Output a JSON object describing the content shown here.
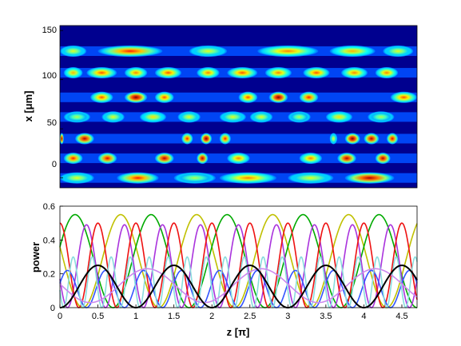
{
  "chart_data": [
    {
      "type": "heatmap",
      "ylabel": "x [μm]",
      "xlabel": "",
      "y_ticks": [
        "0",
        "50",
        "100",
        "150"
      ],
      "x_range_pi": [
        0,
        4.7
      ],
      "y_range_um": [
        -10,
        155
      ],
      "colormap": "jet",
      "waveguide_rows": [
        {
          "x_um": 0,
          "segments": [
            [
              0.0,
              0.45,
              0.6
            ],
            [
              0.75,
              1.3,
              0.85
            ],
            [
              1.5,
              2.05,
              0.55
            ],
            [
              2.1,
              2.85,
              0.75
            ],
            [
              3.0,
              3.6,
              0.6
            ],
            [
              3.75,
              4.4,
              0.95
            ]
          ]
        },
        {
          "x_um": 20,
          "segments": [
            [
              0.05,
              0.3,
              0.85
            ],
            [
              0.5,
              0.75,
              0.9
            ],
            [
              1.25,
              1.5,
              0.95
            ],
            [
              1.8,
              1.95,
              0.95
            ],
            [
              2.2,
              2.5,
              0.75
            ],
            [
              3.15,
              3.45,
              0.75
            ],
            [
              3.65,
              3.9,
              0.95
            ],
            [
              4.15,
              4.35,
              0.95
            ]
          ]
        },
        {
          "x_um": 40,
          "segments": [
            [
              -0.05,
              0.05,
              1.0
            ],
            [
              0.2,
              0.45,
              0.95
            ],
            [
              1.6,
              1.75,
              0.85
            ],
            [
              1.85,
              2.0,
              1.0
            ],
            [
              2.1,
              2.25,
              0.85
            ],
            [
              3.55,
              3.65,
              0.6
            ],
            [
              3.75,
              3.95,
              1.0
            ],
            [
              4.0,
              4.2,
              0.95
            ],
            [
              4.3,
              4.45,
              0.9
            ]
          ]
        },
        {
          "x_um": 62,
          "segments": [
            [
              0.05,
              0.4,
              0.55
            ],
            [
              0.55,
              0.85,
              0.6
            ],
            [
              1.05,
              1.4,
              0.65
            ],
            [
              1.55,
              1.85,
              0.6
            ],
            [
              2.1,
              2.45,
              0.6
            ],
            [
              2.5,
              2.8,
              0.6
            ],
            [
              3.0,
              3.3,
              0.55
            ],
            [
              3.5,
              3.85,
              0.65
            ],
            [
              4.05,
              4.4,
              0.55
            ]
          ]
        },
        {
          "x_um": 82,
          "segments": [
            [
              0.4,
              0.7,
              0.8
            ],
            [
              0.85,
              1.15,
              1.0
            ],
            [
              1.25,
              1.5,
              0.8
            ],
            [
              2.35,
              2.6,
              0.8
            ],
            [
              2.75,
              3.0,
              1.0
            ],
            [
              3.15,
              3.4,
              0.85
            ],
            [
              4.35,
              4.7,
              0.8
            ]
          ]
        },
        {
          "x_um": 107,
          "segments": [
            [
              0.05,
              0.3,
              0.7
            ],
            [
              0.35,
              0.75,
              0.8
            ],
            [
              0.85,
              1.15,
              0.75
            ],
            [
              1.25,
              1.6,
              0.8
            ],
            [
              1.8,
              2.1,
              0.75
            ],
            [
              2.2,
              2.6,
              0.8
            ],
            [
              2.7,
              3.05,
              0.75
            ],
            [
              3.2,
              3.55,
              0.8
            ],
            [
              3.7,
              4.05,
              0.75
            ],
            [
              4.15,
              4.45,
              0.75
            ]
          ]
        },
        {
          "x_um": 129,
          "segments": [
            [
              0.0,
              0.35,
              0.6
            ],
            [
              0.5,
              1.35,
              0.85
            ],
            [
              1.7,
              2.2,
              0.6
            ],
            [
              2.6,
              3.4,
              0.75
            ],
            [
              3.55,
              4.15,
              0.7
            ],
            [
              4.25,
              4.65,
              0.6
            ]
          ]
        }
      ]
    },
    {
      "type": "line",
      "xlabel": "z [π]",
      "ylabel": "power",
      "x_ticks": [
        "0",
        "0.5",
        "1",
        "1.5",
        "2",
        "2.5",
        "3",
        "3.5",
        "4",
        "4.5"
      ],
      "y_ticks": [
        "0",
        "0.2",
        "0.4",
        "0.6"
      ],
      "xlim": [
        0,
        4.7
      ],
      "ylim": [
        0,
        0.6
      ],
      "series": [
        {
          "color": "#000000",
          "amplitude": 0.25,
          "period": 1.0,
          "phase": 0.0,
          "offset": 0,
          "shape": "sin2"
        },
        {
          "color": "#c0c000",
          "amplitude": 0.55,
          "period": 1.0,
          "phase": 0.3,
          "offset": 0,
          "shape": "sin2"
        },
        {
          "color": "#00aa00",
          "amplitude": 0.55,
          "period": 1.0,
          "phase": 0.7,
          "offset": 0,
          "shape": "sin2"
        },
        {
          "color": "#aa33dd",
          "amplitude": 0.49,
          "period": 0.5,
          "phase": 0.1,
          "offset": 0,
          "shape": "sin2"
        },
        {
          "color": "#ee1111",
          "amplitude": 0.5,
          "period": 0.5,
          "phase": 0.0,
          "offset": 0,
          "shape": "cos2"
        },
        {
          "color": "#3355ff",
          "amplitude": 0.22,
          "period": 0.5,
          "phase": 0.35,
          "offset": 0,
          "shape": "sin2"
        },
        {
          "color": "#88dddd",
          "amplitude": 0.3,
          "period": 0.25,
          "phase": 0.05,
          "offset": 0,
          "shape": "sin2"
        },
        {
          "color": "#cc88ee",
          "amplitude": 0.2,
          "period": 1.5,
          "phase": 0.4,
          "offset": 0.03,
          "shape": "sin2"
        }
      ]
    }
  ]
}
